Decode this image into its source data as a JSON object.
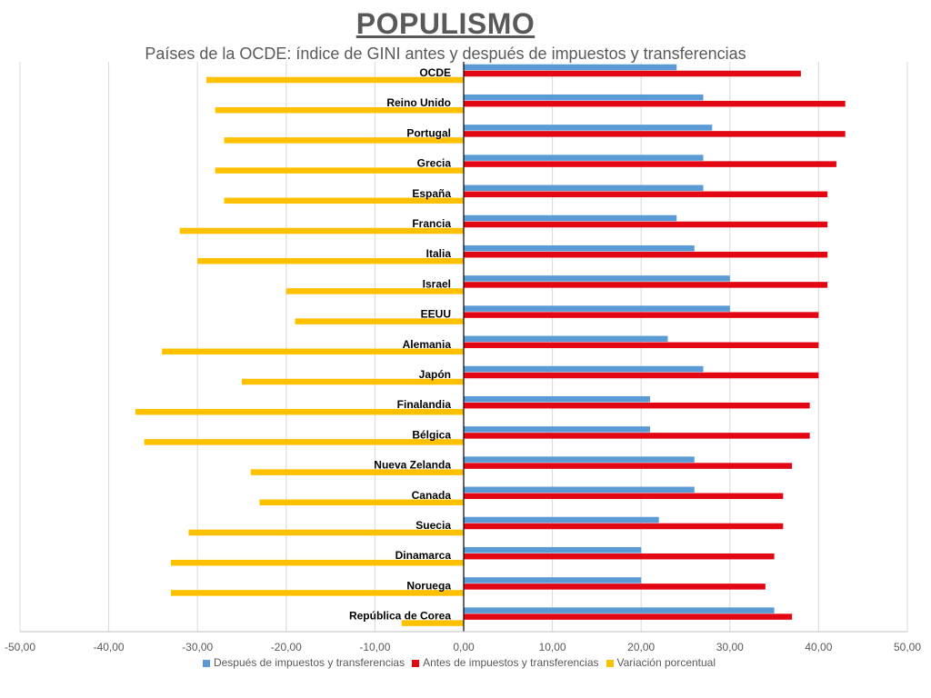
{
  "title": "POPULISMO",
  "subtitle": "Países de la OCDE: índice de GINI antes y después de impuestos y transferencias",
  "chart_data": {
    "type": "bar",
    "orientation": "horizontal",
    "categories": [
      "OCDE",
      "Reino Unido",
      "Portugal",
      "Grecia",
      "España",
      "Francia",
      "Italia",
      "Israel",
      "EEUU",
      "Alemania",
      "Japón",
      "Finalandia",
      "Bélgica",
      "Nueva Zelanda",
      "Canada",
      "Suecia",
      "Dinamarca",
      "Noruega",
      "República de Corea"
    ],
    "series": [
      {
        "name": "Después de impuestos y transferencias",
        "color": "#5b9bd5",
        "values": [
          24,
          27,
          28,
          27,
          27,
          24,
          26,
          30,
          30,
          23,
          27,
          21,
          21,
          26,
          26,
          22,
          20,
          20,
          35
        ]
      },
      {
        "name": "Antes de impuestos y transferencias",
        "color": "#e30613",
        "values": [
          38,
          43,
          43,
          42,
          41,
          41,
          41,
          41,
          40,
          40,
          40,
          39,
          39,
          37,
          36,
          36,
          35,
          34,
          37
        ]
      },
      {
        "name": "Variación porcentual",
        "color": "#ffc000",
        "values": [
          -29,
          -28,
          -27,
          -28,
          -27,
          -32,
          -30,
          -20,
          -19,
          -34,
          -25,
          -37,
          -36,
          -24,
          -23,
          -31,
          -33,
          -33,
          -7
        ]
      }
    ],
    "xlim": [
      -50,
      50
    ],
    "xticks": [
      "-50,00",
      "-40,00",
      "-30,00",
      "-20,00",
      "-10,00",
      "0,00",
      "10,00",
      "20,00",
      "30,00",
      "40,00",
      "50,00"
    ],
    "grid": "vertical",
    "legend": "bottom"
  }
}
